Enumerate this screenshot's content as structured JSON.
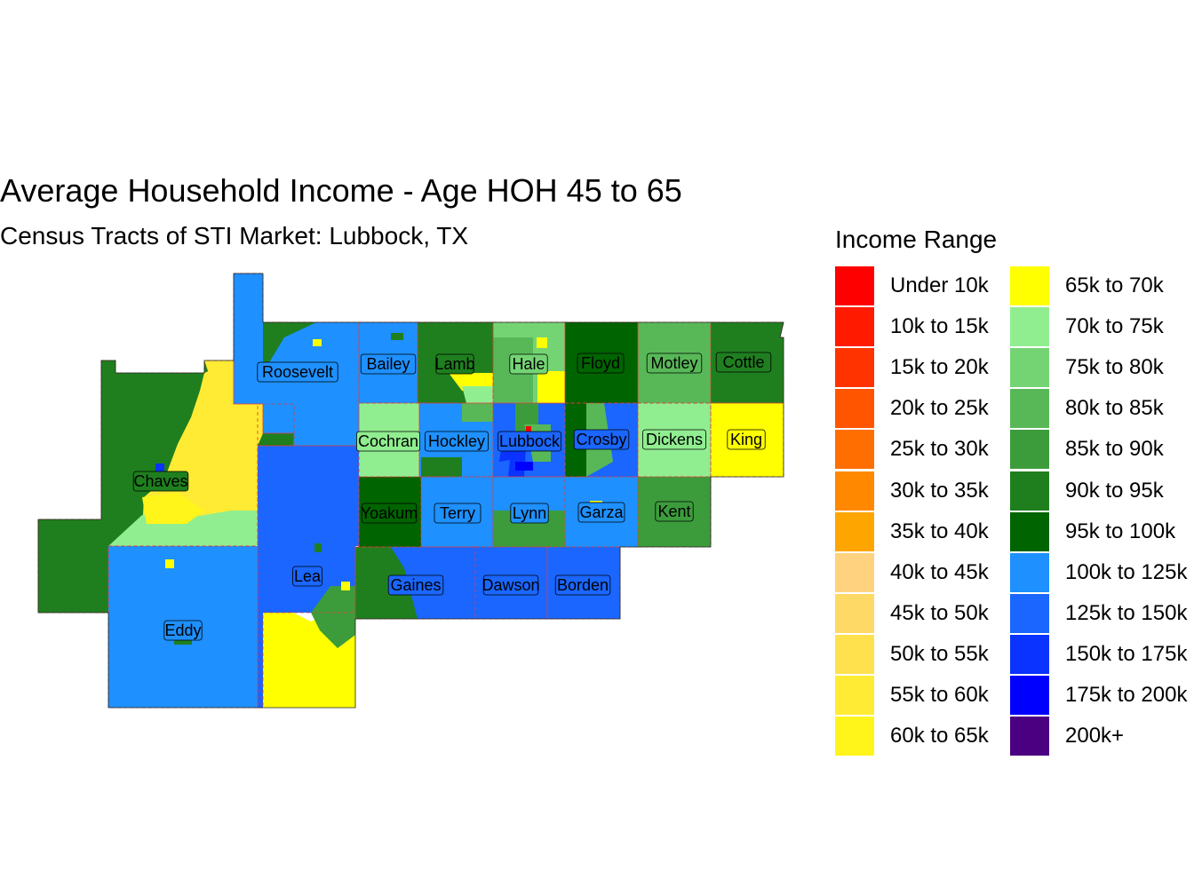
{
  "title": "Average Household Income - Age HOH 45 to 65",
  "subtitle": "Census Tracts of STI Market: Lubbock, TX",
  "legend": {
    "title": "Income Range",
    "items": [
      {
        "label": "Under 10k",
        "color": "#FF0000"
      },
      {
        "label": "10k to 15k",
        "color": "#FF1A00"
      },
      {
        "label": "15k to 20k",
        "color": "#FF3300"
      },
      {
        "label": "20k to 25k",
        "color": "#FF5500"
      },
      {
        "label": "25k to 30k",
        "color": "#FF6E00"
      },
      {
        "label": "30k to 35k",
        "color": "#FF8800"
      },
      {
        "label": "35k to 40k",
        "color": "#FFA500"
      },
      {
        "label": "40k to 45k",
        "color": "#FFD27F"
      },
      {
        "label": "45k to 50k",
        "color": "#FFD966"
      },
      {
        "label": "50k to 55k",
        "color": "#FFE14D"
      },
      {
        "label": "55k to 60k",
        "color": "#FFEB33"
      },
      {
        "label": "60k to 65k",
        "color": "#FFF51A"
      },
      {
        "label": "65k to 70k",
        "color": "#FFFF00"
      },
      {
        "label": "70k to 75k",
        "color": "#90EE90"
      },
      {
        "label": "75k to 80k",
        "color": "#74D474"
      },
      {
        "label": "80k to 85k",
        "color": "#58B858"
      },
      {
        "label": "85k to 90k",
        "color": "#3C9C3C"
      },
      {
        "label": "90k to 95k",
        "color": "#1F7F1F"
      },
      {
        "label": "95k to 100k",
        "color": "#006400"
      },
      {
        "label": "100k to 125k",
        "color": "#1E90FF"
      },
      {
        "label": "125k to 150k",
        "color": "#1A66FF"
      },
      {
        "label": "150k to 175k",
        "color": "#0A33FF"
      },
      {
        "label": "175k to 200k",
        "color": "#0000FF"
      },
      {
        "label": "200k+",
        "color": "#4B0082"
      }
    ]
  },
  "counties": [
    {
      "name": "Roosevelt",
      "color": "#1E90FF"
    },
    {
      "name": "Chaves",
      "color": "#1F7F1F"
    },
    {
      "name": "Lea",
      "color": "#1A66FF"
    },
    {
      "name": "Eddy",
      "color": "#1E90FF"
    },
    {
      "name": "Bailey",
      "color": "#1E90FF"
    },
    {
      "name": "Lamb",
      "color": "#1F7F1F"
    },
    {
      "name": "Hale",
      "color": "#74D474"
    },
    {
      "name": "Floyd",
      "color": "#006400"
    },
    {
      "name": "Motley",
      "color": "#58B858"
    },
    {
      "name": "Cottle",
      "color": "#1F7F1F"
    },
    {
      "name": "Cochran",
      "color": "#90EE90"
    },
    {
      "name": "Hockley",
      "color": "#1E90FF"
    },
    {
      "name": "Lubbock",
      "color": "#1A66FF"
    },
    {
      "name": "Crosby",
      "color": "#1A66FF"
    },
    {
      "name": "Dickens",
      "color": "#90EE90"
    },
    {
      "name": "King",
      "color": "#FFFF00"
    },
    {
      "name": "Yoakum",
      "color": "#006400"
    },
    {
      "name": "Terry",
      "color": "#1E90FF"
    },
    {
      "name": "Lynn",
      "color": "#1E90FF"
    },
    {
      "name": "Garza",
      "color": "#1E90FF"
    },
    {
      "name": "Kent",
      "color": "#3C9C3C"
    },
    {
      "name": "Gaines",
      "color": "#1A66FF"
    },
    {
      "name": "Dawson",
      "color": "#1A66FF"
    },
    {
      "name": "Borden",
      "color": "#1A66FF"
    }
  ]
}
